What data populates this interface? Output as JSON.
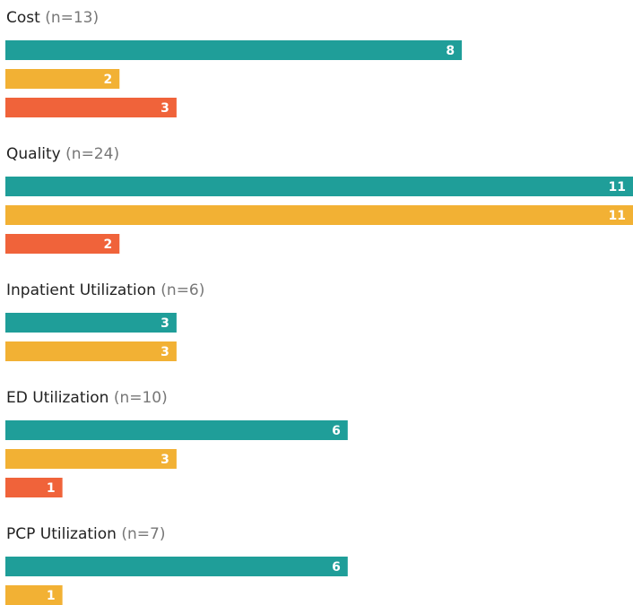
{
  "chart_data": {
    "type": "bar",
    "orientation": "horizontal",
    "categories": [
      "Cost",
      "Quality",
      "Inpatient Utilization",
      "ED Utilization",
      "PCP Utilization"
    ],
    "n_labels": [
      "(n=13)",
      "(n=24)",
      "(n=6)",
      "(n=10)",
      "(n=7)"
    ],
    "series": [
      {
        "color": "#1f9e99",
        "values": [
          8,
          11,
          3,
          6,
          6
        ]
      },
      {
        "color": "#f2b134",
        "values": [
          2,
          11,
          3,
          3,
          1
        ]
      },
      {
        "color": "#f0633a",
        "values": [
          3,
          2,
          null,
          1,
          null
        ]
      }
    ],
    "xlim": [
      0,
      11
    ]
  }
}
